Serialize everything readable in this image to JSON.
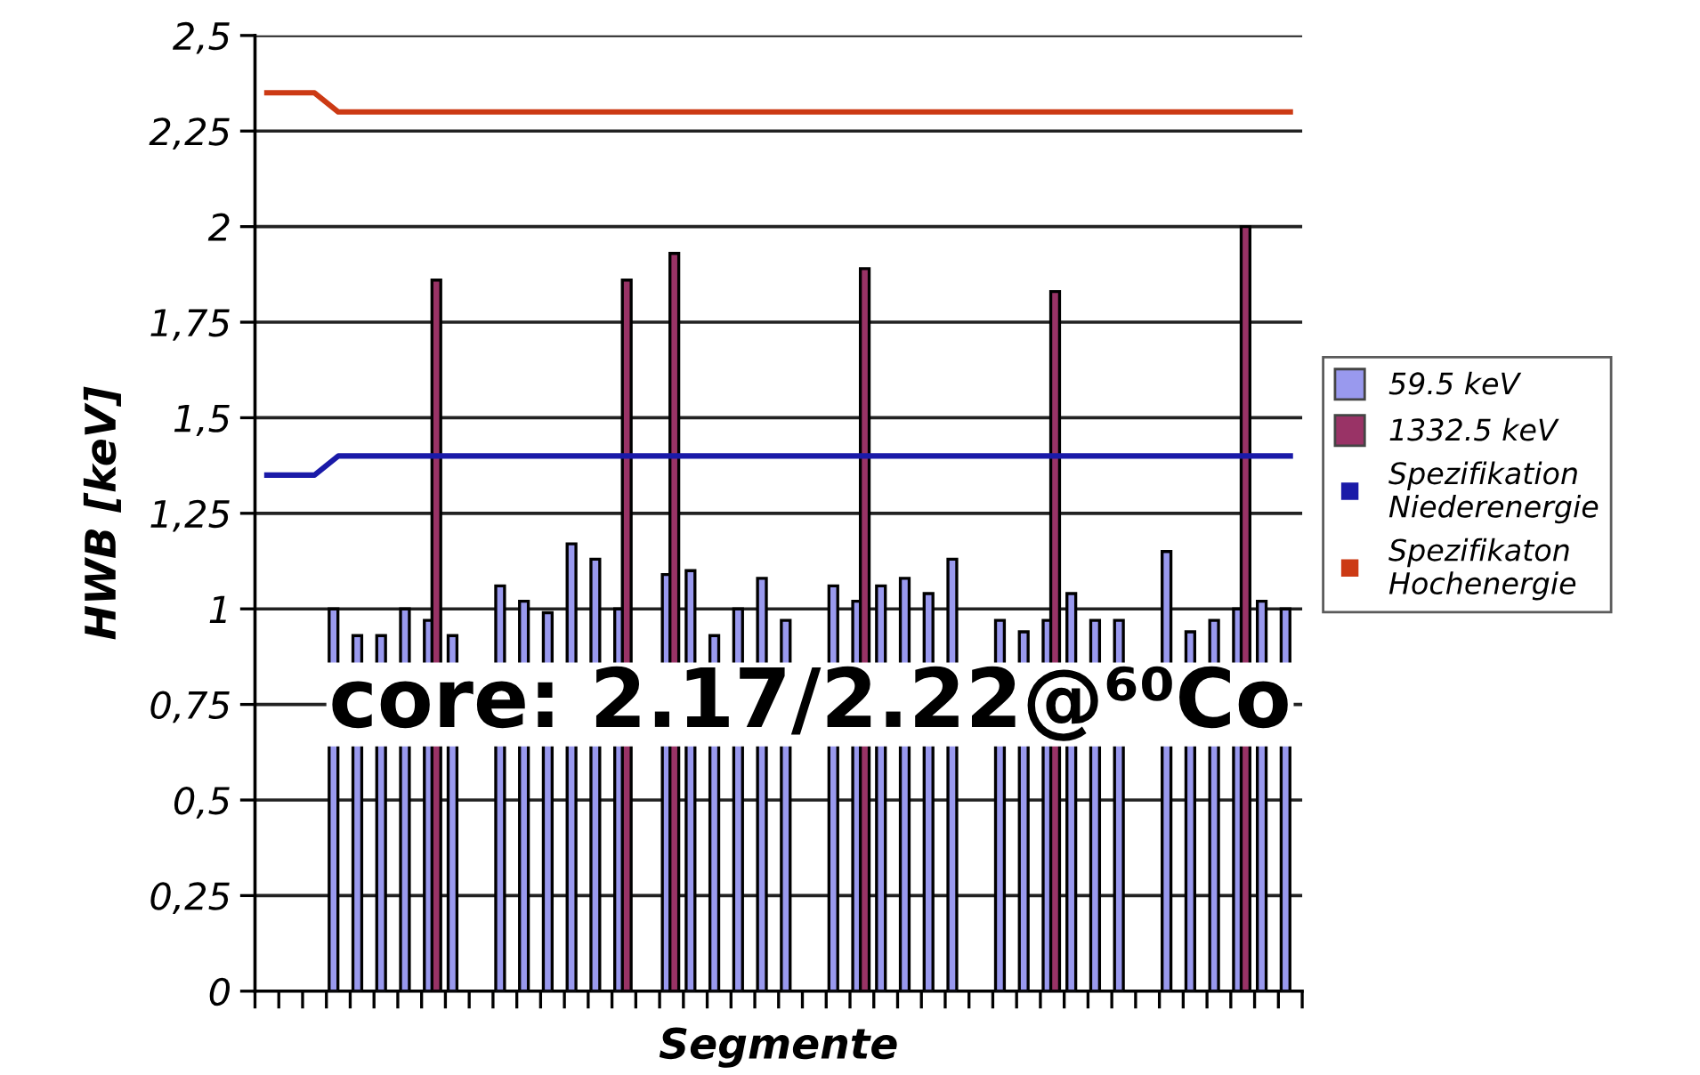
{
  "chart_data": {
    "type": "bar",
    "xlabel": "Segmente",
    "ylabel": "HWB [keV]",
    "categories": [
      null,
      null,
      null,
      null,
      null,
      null,
      null,
      null,
      null,
      null,
      null,
      null,
      null,
      null,
      null,
      null,
      null,
      null,
      null,
      null,
      null,
      null,
      null,
      null,
      null,
      null,
      null,
      null,
      null,
      null,
      null,
      null,
      null,
      null,
      null,
      null,
      null,
      null,
      null,
      null,
      null,
      null,
      null,
      null
    ],
    "series": [
      {
        "name": "59.5 keV",
        "color": "#9999ee",
        "values": [
          null,
          null,
          null,
          1.0,
          0.93,
          0.93,
          1.0,
          0.97,
          0.93,
          null,
          1.06,
          1.02,
          0.99,
          1.17,
          1.13,
          1.0,
          null,
          1.09,
          1.1,
          0.93,
          1.0,
          1.08,
          0.97,
          null,
          1.06,
          1.02,
          1.06,
          1.08,
          1.04,
          1.13,
          null,
          0.97,
          0.94,
          0.97,
          1.04,
          0.97,
          0.97,
          null,
          1.15,
          0.94,
          0.97,
          1.0,
          1.02,
          1.0
        ]
      },
      {
        "name": "1332.5 keV",
        "color": "#993366",
        "values": [
          null,
          null,
          null,
          null,
          null,
          null,
          null,
          1.86,
          null,
          null,
          null,
          null,
          null,
          null,
          null,
          1.86,
          null,
          1.93,
          null,
          null,
          null,
          null,
          null,
          null,
          null,
          1.89,
          null,
          null,
          null,
          null,
          null,
          null,
          null,
          1.83,
          null,
          null,
          null,
          null,
          null,
          null,
          null,
          2.0,
          null,
          null
        ]
      },
      {
        "name": "Spezifikation\nNiederenergie",
        "type": "line",
        "color": "#1a1aa8",
        "values": [
          1.35,
          1.35,
          1.35,
          1.4,
          1.4,
          1.4,
          1.4,
          1.4,
          1.4,
          1.4,
          1.4,
          1.4,
          1.4,
          1.4,
          1.4,
          1.4,
          1.4,
          1.4,
          1.4,
          1.4,
          1.4,
          1.4,
          1.4,
          1.4,
          1.4,
          1.4,
          1.4,
          1.4,
          1.4,
          1.4,
          1.4,
          1.4,
          1.4,
          1.4,
          1.4,
          1.4,
          1.4,
          1.4,
          1.4,
          1.4,
          1.4,
          1.4,
          1.4,
          1.4
        ]
      },
      {
        "name": "Spezifikaton\nHochenergie",
        "type": "line",
        "color": "#cc3a14",
        "values": [
          2.35,
          2.35,
          2.35,
          2.3,
          2.3,
          2.3,
          2.3,
          2.3,
          2.3,
          2.3,
          2.3,
          2.3,
          2.3,
          2.3,
          2.3,
          2.3,
          2.3,
          2.3,
          2.3,
          2.3,
          2.3,
          2.3,
          2.3,
          2.3,
          2.3,
          2.3,
          2.3,
          2.3,
          2.3,
          2.3,
          2.3,
          2.3,
          2.3,
          2.3,
          2.3,
          2.3,
          2.3,
          2.3,
          2.3,
          2.3,
          2.3,
          2.3,
          2.3,
          2.3
        ]
      }
    ],
    "ylim": [
      0,
      2.5
    ],
    "yticks": [
      0,
      {
        "value": 0.25,
        "label": "0,25"
      },
      {
        "value": 0.5,
        "label": "0,5"
      },
      {
        "value": 0.75,
        "label": "0,75"
      },
      1,
      {
        "value": 1.25,
        "label": "1,25"
      },
      {
        "value": 1.5,
        "label": "1,5"
      },
      {
        "value": 1.75,
        "label": "1,75"
      },
      2,
      {
        "value": 2.25,
        "label": "2,25"
      },
      {
        "value": 2.5,
        "label": "2,5"
      }
    ],
    "grid": "y",
    "legend": "right",
    "marker": "none",
    "line_style": "solid",
    "annotations": [
      "core: 2.17/2.22@⁶⁰Co"
    ]
  }
}
